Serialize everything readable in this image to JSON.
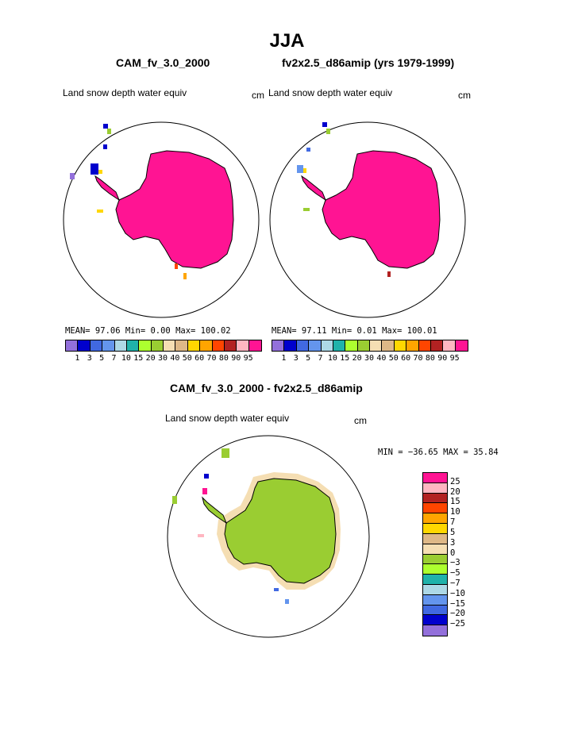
{
  "page": {
    "title": "JJA",
    "left_case": "CAM_fv_3.0_2000",
    "right_case": "fv2x2.5_d86amip (yrs 1979-1999)",
    "diff_title": "CAM_fv_3.0_2000 - fv2x2.5_d86amip"
  },
  "panels": {
    "left": {
      "field": "Land snow depth water equiv",
      "units": "cm",
      "stats": "MEAN=   97.06   Min=    0.00   Max= 100.02"
    },
    "right": {
      "field": "Land snow depth water equiv",
      "units": "cm",
      "stats": "MEAN=   97.11   Min=    0.01   Max= 100.01"
    },
    "diff": {
      "field": "Land snow depth water equiv",
      "units": "cm",
      "stats": "MIN = −36.65  MAX =  35.84"
    }
  },
  "colorbar_abs": {
    "colors": [
      "#9370db",
      "#0000cd",
      "#4169e1",
      "#6495ed",
      "#add8e6",
      "#20b2aa",
      "#adff2f",
      "#9acd32",
      "#f5deb3",
      "#deb887",
      "#ffd700",
      "#ffa500",
      "#ff4500",
      "#b22222",
      "#ffb6c1",
      "#ff1493"
    ],
    "ticks": [
      "1",
      "3",
      "5",
      "7",
      "10",
      "15",
      "20",
      "30",
      "40",
      "50",
      "60",
      "70",
      "80",
      "90",
      "95"
    ]
  },
  "colorbar_diff": {
    "colors": [
      "#ff1493",
      "#ffb6c1",
      "#b22222",
      "#ff4500",
      "#ffa500",
      "#ffd700",
      "#deb887",
      "#f5deb3",
      "#9acd32",
      "#adff2f",
      "#20b2aa",
      "#add8e6",
      "#6495ed",
      "#4169e1",
      "#0000cd",
      "#9370db"
    ],
    "ticks": [
      "25",
      "20",
      "15",
      "10",
      "7",
      "5",
      "3",
      "0",
      "−3",
      "−5",
      "−7",
      "−10",
      "−15",
      "−20",
      "−25"
    ]
  }
}
